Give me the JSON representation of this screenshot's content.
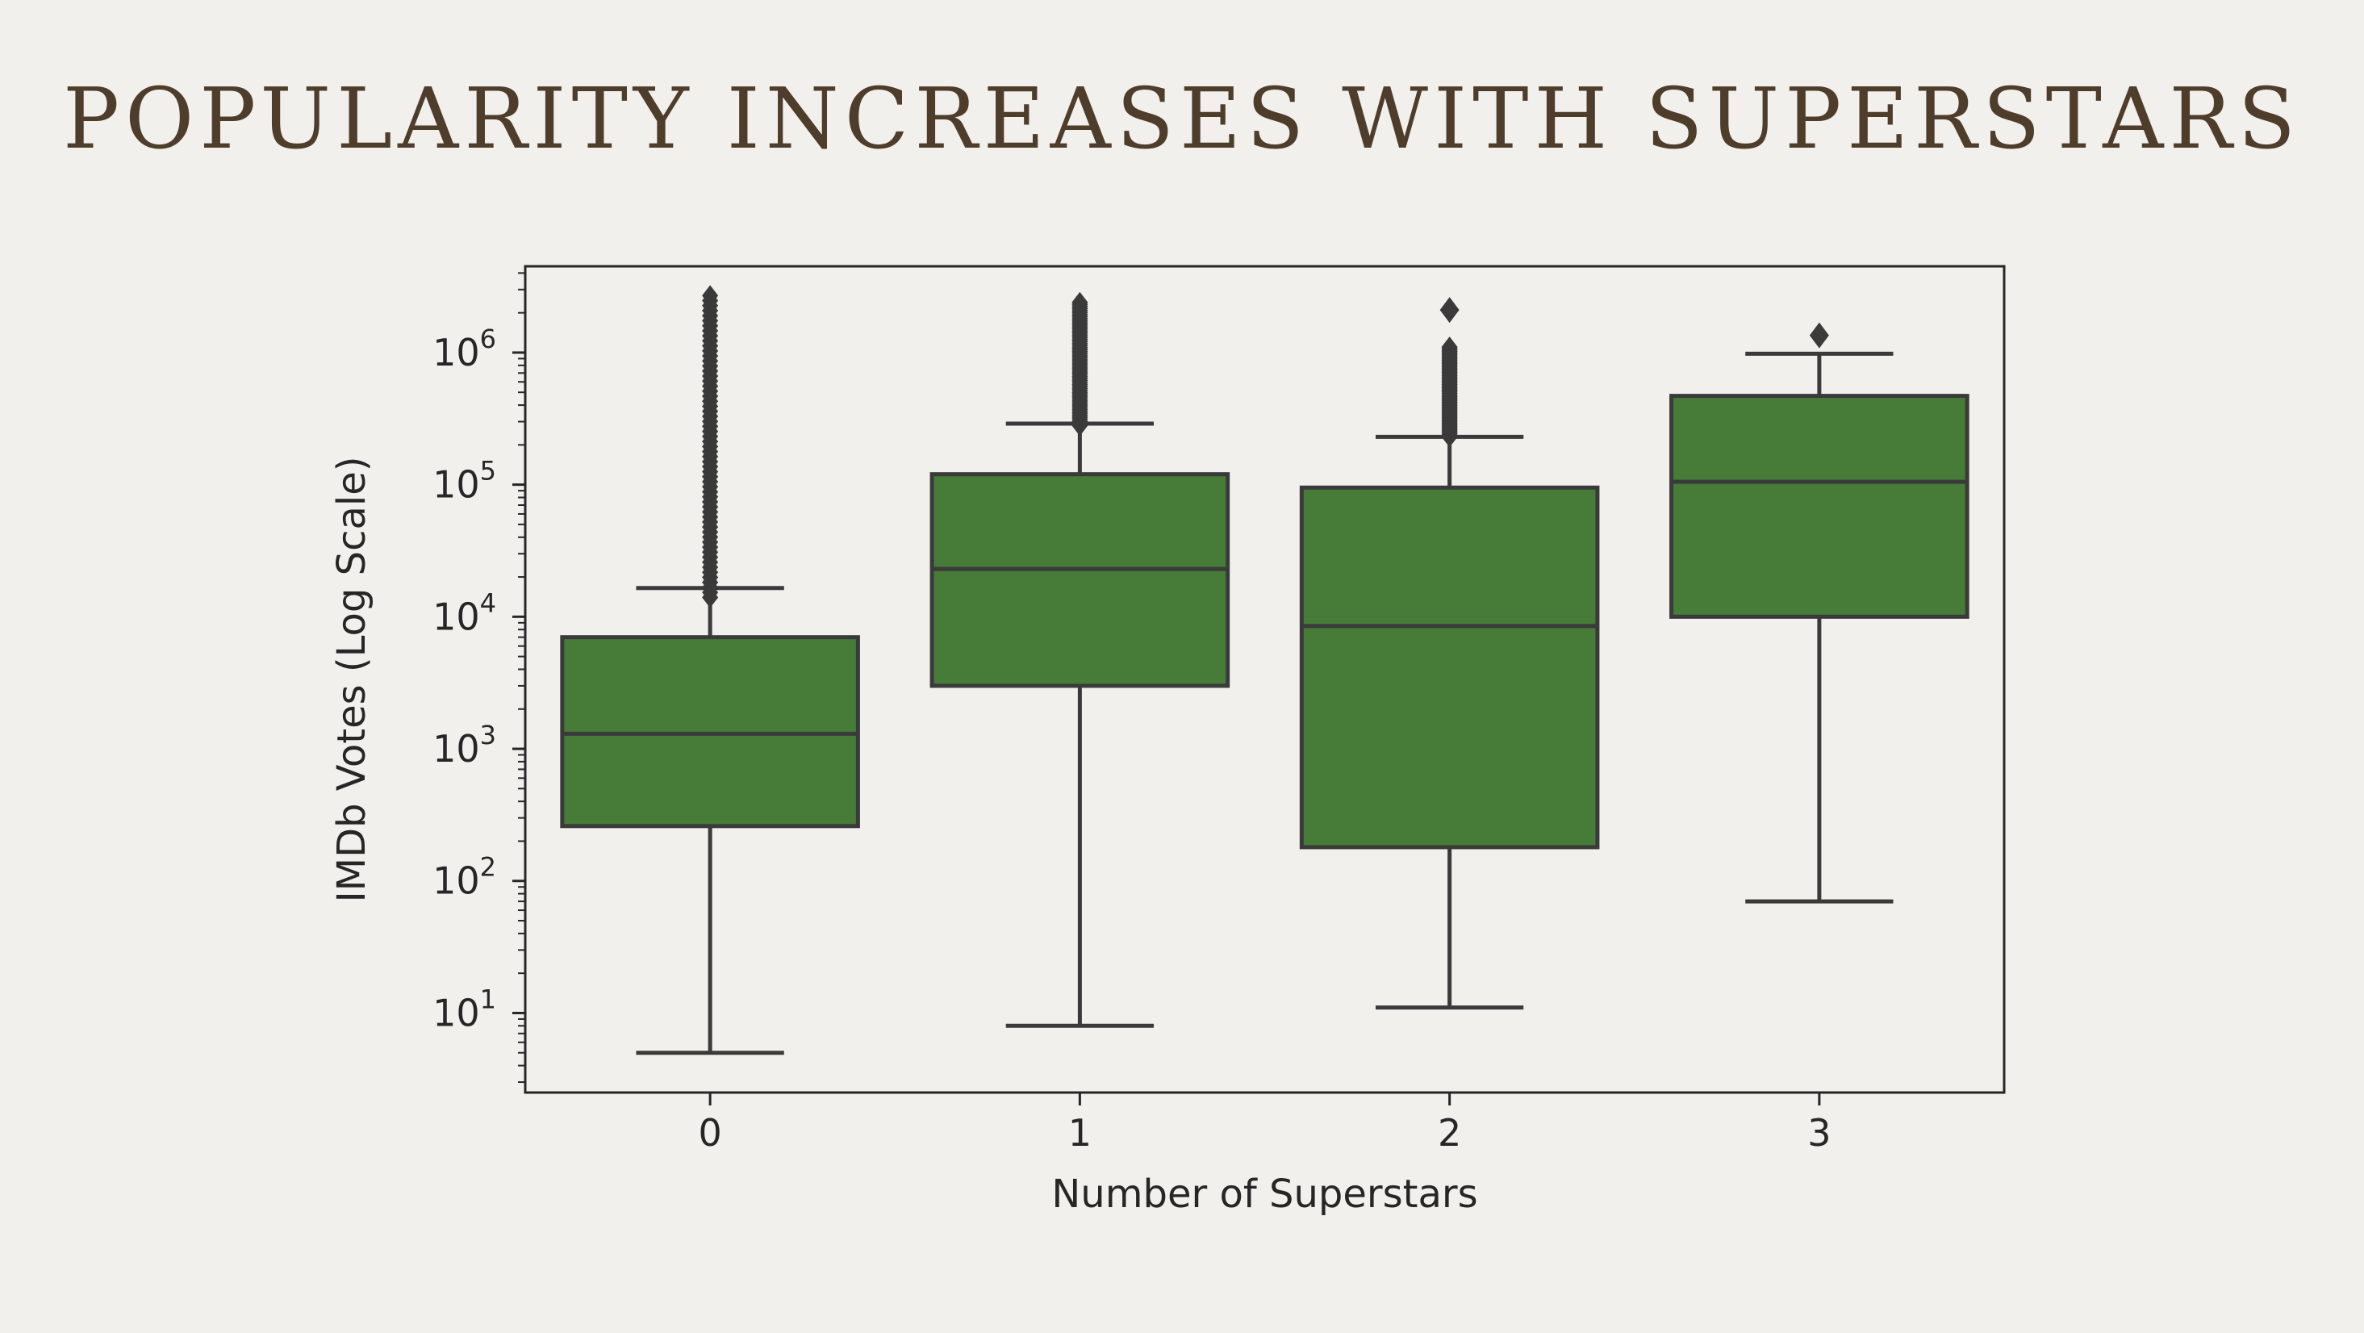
{
  "page": {
    "title": "POPULARITY INCREASES WITH SUPERSTARS"
  },
  "chart_data": {
    "type": "box",
    "xlabel": "Number of Superstars",
    "ylabel": "IMDb Votes (Log Scale)",
    "yscale": "log",
    "ylim": [
      2.5,
      4500000
    ],
    "categories": [
      "0",
      "1",
      "2",
      "3"
    ],
    "yticks": [
      {
        "value": 10,
        "base": "10",
        "exp": "1"
      },
      {
        "value": 100,
        "base": "10",
        "exp": "2"
      },
      {
        "value": 1000,
        "base": "10",
        "exp": "3"
      },
      {
        "value": 10000,
        "base": "10",
        "exp": "4"
      },
      {
        "value": 100000,
        "base": "10",
        "exp": "5"
      },
      {
        "value": 1000000,
        "base": "10",
        "exp": "6"
      }
    ],
    "grid": false,
    "legend": "none",
    "colors": {
      "box_fill": "#467b38",
      "line": "#3a3a3a",
      "axis": "#262626"
    },
    "boxes": [
      {
        "category": "0",
        "whisker_low": 5,
        "q1": 260,
        "median": 1300,
        "q3": 7000,
        "whisker_high": 16500,
        "outlier_range": [
          14000,
          2700000
        ]
      },
      {
        "category": "1",
        "whisker_low": 8,
        "q1": 3000,
        "median": 23000,
        "q3": 120000,
        "whisker_high": 290000,
        "outlier_range": [
          280000,
          2400000
        ]
      },
      {
        "category": "2",
        "whisker_low": 11,
        "q1": 180,
        "median": 8500,
        "q3": 95000,
        "whisker_high": 230000,
        "outlier_range": [
          230000,
          1100000
        ],
        "outliers_extra": [
          2100000
        ]
      },
      {
        "category": "3",
        "whisker_low": 70,
        "q1": 10000,
        "median": 105000,
        "q3": 470000,
        "whisker_high": 980000,
        "outliers_extra": [
          1350000
        ]
      }
    ]
  }
}
